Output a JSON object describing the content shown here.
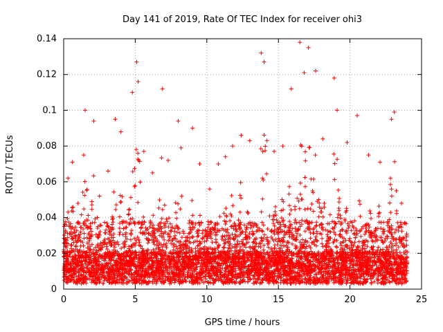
{
  "chart_data": {
    "type": "scatter",
    "title": "Day 141 of 2019, Rate Of TEC Index for receiver ohi3",
    "xlabel": "GPS time / hours",
    "ylabel": "ROTI / TECUs",
    "xlim": [
      0,
      25
    ],
    "ylim": [
      0,
      0.14
    ],
    "x_ticks": [
      0,
      5,
      10,
      15,
      20,
      25
    ],
    "y_ticks": [
      0,
      0.02,
      0.04,
      0.06,
      0.08,
      0.1,
      0.12,
      0.14
    ],
    "x_tick_labels": [
      "0",
      "5",
      "10",
      "15",
      "20",
      "25"
    ],
    "y_tick_labels": [
      "0",
      "0.02",
      "0.04",
      "0.06",
      "0.08",
      "0.1",
      "0.12",
      "0.14"
    ],
    "grid": true,
    "marker": "plus",
    "color": "#ff0000",
    "data_range": {
      "x_min": 0.0,
      "x_max": 24.0
    },
    "series": [
      {
        "values_note": "",
        "x": [
          0.0,
          0.3,
          0.6,
          1.0,
          1.4,
          1.5,
          2.1,
          2.5,
          3.1,
          3.6,
          4.0,
          4.8,
          5.1,
          5.2,
          5.6,
          6.2,
          6.9,
          7.3,
          8.0,
          8.2,
          9.0,
          9.5,
          10.2,
          10.8,
          11.3,
          11.8,
          12.4,
          13.0,
          13.8,
          14.0,
          14.2,
          14.7,
          15.3,
          15.9,
          16.5,
          16.8,
          17.1,
          17.6,
          18.1,
          18.9,
          19.1,
          19.8,
          20.5,
          21.3,
          22.1,
          22.9,
          23.1,
          23.6
        ],
        "y": [
          0.022,
          0.062,
          0.071,
          0.048,
          0.075,
          0.1,
          0.094,
          0.052,
          0.066,
          0.095,
          0.088,
          0.11,
          0.127,
          0.116,
          0.077,
          0.065,
          0.112,
          0.072,
          0.094,
          0.079,
          0.09,
          0.07,
          0.056,
          0.07,
          0.074,
          0.08,
          0.086,
          0.083,
          0.132,
          0.127,
          0.083,
          0.077,
          0.08,
          0.112,
          0.138,
          0.121,
          0.135,
          0.122,
          0.084,
          0.118,
          0.1,
          0.082,
          0.097,
          0.075,
          0.071,
          0.095,
          0.099,
          0.048
        ]
      }
    ]
  }
}
